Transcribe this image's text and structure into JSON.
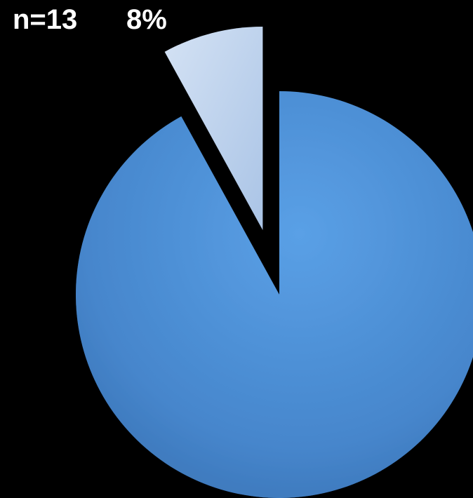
{
  "annotations": {
    "n_label": "n=13",
    "percent_label": "8%"
  },
  "chart_data": {
    "type": "pie",
    "categories": [
      "",
      ""
    ],
    "values": [
      92,
      8
    ],
    "exploded": [
      false,
      true
    ],
    "colors": [
      "#4a8fd6",
      "#c2d6ee"
    ],
    "title": "",
    "annotations": [
      "n=13",
      "8%"
    ]
  }
}
